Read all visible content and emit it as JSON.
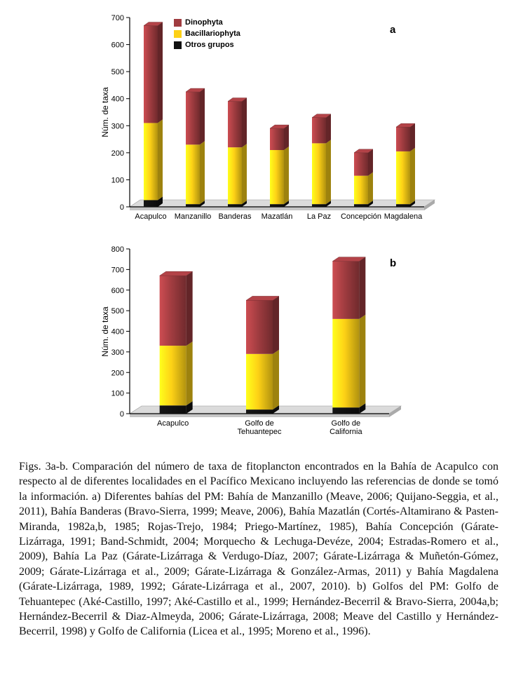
{
  "figure": {
    "caption": "Figs. 3a-b. Comparación del número de taxa de fitoplancton encontrados en la Bahía de Acapulco con respecto al de diferentes localidades en el Pacífico Mexicano incluyendo las referencias de donde se tomó la información. a) Diferentes bahías del PM: Bahía de Manzanillo (Meave, 2006; Quijano-Seggia, et al., 2011), Bahía Banderas (Bravo-Sierra, 1999; Meave, 2006), Bahía Mazatlán (Cortés-Altamirano & Pasten-Miranda, 1982a,b, 1985; Rojas-Trejo, 1984; Priego-Martínez, 1985), Bahía Concepción (Gárate-Lizárraga, 1991; Band-Schmidt, 2004; Morquecho & Lechuga-Devéze, 2004; Estradas-Romero et al., 2009), Bahía La Paz (Gárate-Lizárraga & Verdugo-Díaz, 2007; Gárate-Lizárraga & Muñetón-Gómez, 2009; Gárate-Lizárraga et al., 2009; Gárate-Lizárraga & González-Armas, 2011) y Bahía Magdalena (Gárate-Lizárraga, 1989, 1992; Gárate-Lizárraga et al., 2007, 2010). b) Golfos del PM: Golfo de Tehuantepec (Aké-Castillo, 1997; Aké-Castillo et al., 1999; Hernández-Becerril & Bravo-Sierra, 2004a,b; Hernández-Becerril & Diaz-Almeyda, 2006; Gárate-Lizárraga, 2008; Meave del Castillo y Hernández-Becerril, 1998) y Golfo de California (Licea et al., 1995; Moreno et al., 1996)."
  },
  "chart_data": [
    {
      "id": "chart-a",
      "type": "bar",
      "stacked": true,
      "corner_label": "a",
      "ylabel": "Núm. de taxa",
      "ylim": [
        0,
        700
      ],
      "ytick_step": 100,
      "grid": false,
      "categories": [
        "Acapulco",
        "Manzanillo",
        "Banderas",
        "Mazatlán",
        "La Paz",
        "Concepción",
        "Magdalena"
      ],
      "series": [
        {
          "name": "Otros grupos",
          "color": "#111111",
          "values": [
            25,
            10,
            10,
            10,
            10,
            10,
            10
          ]
        },
        {
          "name": "Bacillariophyta",
          "color": "#fdd116",
          "values": [
            285,
            220,
            210,
            200,
            225,
            105,
            195
          ]
        },
        {
          "name": "Dinophyta",
          "color": "#a03c40",
          "values": [
            360,
            195,
            170,
            80,
            95,
            85,
            90
          ]
        }
      ],
      "totals": [
        670,
        425,
        390,
        290,
        330,
        200,
        295
      ],
      "legend": [
        "Dinophyta",
        "Bacillariophyta",
        "Otros grupos"
      ],
      "legend_position": "top-left-inside"
    },
    {
      "id": "chart-b",
      "type": "bar",
      "stacked": true,
      "corner_label": "b",
      "ylabel": "Núm. de taxa",
      "ylim": [
        0,
        800
      ],
      "ytick_step": 100,
      "grid": false,
      "categories": [
        "Acapulco",
        "Golfo de\nTehuantepec",
        "Golfo de\nCalifornia"
      ],
      "series": [
        {
          "name": "Otros grupos",
          "color": "#111111",
          "values": [
            40,
            20,
            30
          ]
        },
        {
          "name": "Bacillariophyta",
          "color": "#fdd116",
          "values": [
            290,
            270,
            430
          ]
        },
        {
          "name": "Dinophyta",
          "color": "#a03c40",
          "values": [
            340,
            260,
            280
          ]
        }
      ],
      "totals": [
        670,
        550,
        740
      ],
      "legend": null,
      "legend_position": null
    }
  ]
}
